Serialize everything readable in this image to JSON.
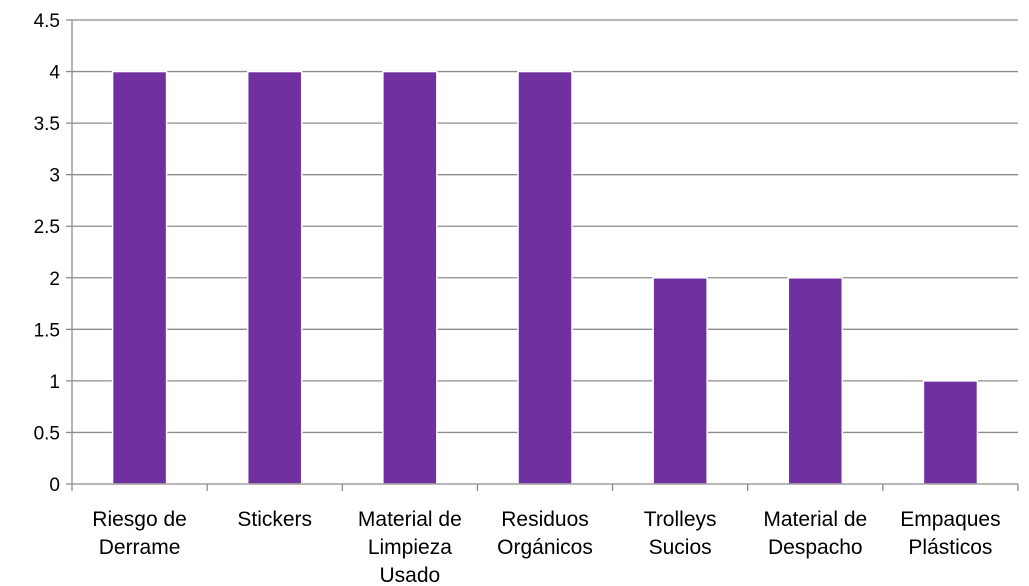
{
  "chart_data": {
    "type": "bar",
    "categories": [
      [
        "Riesgo de",
        "Derrame"
      ],
      [
        "Stickers"
      ],
      [
        "Material de",
        "Limpieza",
        "Usado"
      ],
      [
        "Residuos",
        "Orgánicos"
      ],
      [
        "Trolleys",
        "Sucios"
      ],
      [
        "Material de",
        "Despacho"
      ],
      [
        "Empaques",
        "Plásticos"
      ]
    ],
    "values": [
      4,
      4,
      4,
      4,
      2,
      2,
      1
    ],
    "ylim": [
      0,
      4.5
    ],
    "yticks": [
      "0",
      "0.5",
      "1",
      "1.5",
      "2",
      "2.5",
      "3",
      "3.5",
      "4",
      "4.5"
    ],
    "grid": true,
    "legend": "none",
    "title": "",
    "xlabel": "",
    "ylabel": ""
  },
  "colors": {
    "bar": "#7030A0",
    "bar_edge": "#ffffff",
    "grid": "#8C8C8C",
    "axis": "#8C8C8C"
  }
}
